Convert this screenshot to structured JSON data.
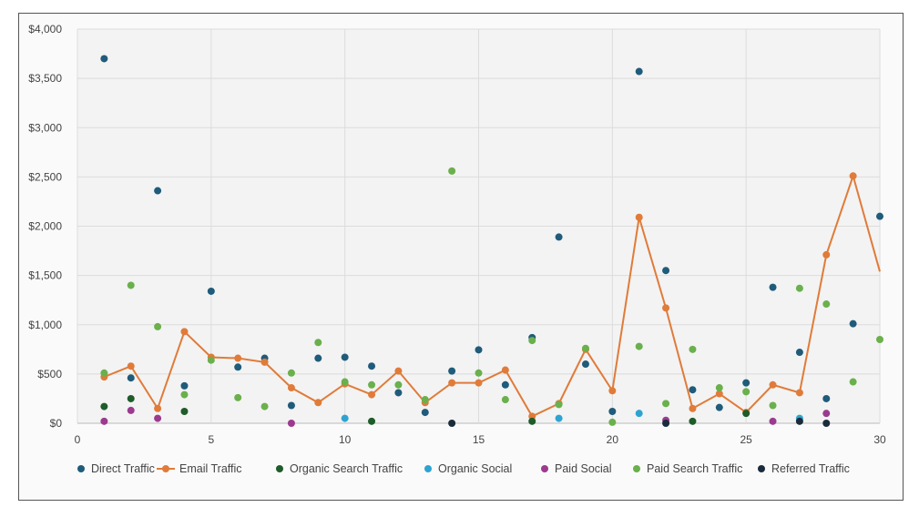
{
  "chart_data": {
    "type": "scatter",
    "title": "",
    "xlabel": "",
    "ylabel": "",
    "xlim": [
      0,
      30
    ],
    "ylim": [
      0,
      4000
    ],
    "x_ticks": [
      "0",
      "5",
      "10",
      "15",
      "20",
      "25",
      "30"
    ],
    "y_ticks": [
      "$0",
      "$500",
      "$1,000",
      "$1,500",
      "$2,000",
      "$2,500",
      "$3,000",
      "$3,500",
      "$4,000"
    ],
    "grid": true,
    "legend_position": "bottom",
    "series": [
      {
        "name": "Direct Traffic",
        "color": "#1f5b7a",
        "style": "markers",
        "x": [
          1,
          2,
          3,
          4,
          5,
          6,
          7,
          8,
          9,
          10,
          11,
          12,
          13,
          14,
          15,
          16,
          17,
          18,
          19,
          20,
          21,
          22,
          23,
          24,
          25,
          26,
          27,
          28,
          29,
          30
        ],
        "y": [
          3700,
          460,
          2360,
          380,
          1340,
          570,
          660,
          180,
          660,
          670,
          580,
          310,
          110,
          530,
          745,
          390,
          870,
          1890,
          600,
          120,
          3570,
          1550,
          340,
          160,
          410,
          1380,
          720,
          250,
          1010,
          2100
        ]
      },
      {
        "name": "Email Traffic",
        "color": "#e07b39",
        "style": "line-markers",
        "x": [
          1,
          2,
          3,
          4,
          5,
          6,
          7,
          8,
          9,
          10,
          11,
          12,
          13,
          14,
          15,
          16,
          17,
          18,
          19,
          20,
          21,
          22,
          23,
          24,
          25,
          26,
          27,
          28,
          29
        ],
        "y": [
          470,
          580,
          150,
          930,
          670,
          660,
          620,
          360,
          210,
          400,
          290,
          530,
          210,
          410,
          410,
          540,
          70,
          200,
          750,
          330,
          2090,
          1170,
          150,
          300,
          110,
          390,
          310,
          1710,
          2510
        ],
        "line_end": [
          30,
          1540
        ]
      },
      {
        "name": "Organic Search Traffic",
        "color": "#1e5c2a",
        "style": "markers",
        "x": [
          1,
          2,
          4,
          11,
          17,
          23,
          25
        ],
        "y": [
          170,
          250,
          120,
          20,
          20,
          20,
          100
        ]
      },
      {
        "name": "Organic Social",
        "color": "#2ea3d1",
        "style": "markers",
        "x": [
          10,
          18,
          21,
          27
        ],
        "y": [
          50,
          50,
          100,
          50
        ]
      },
      {
        "name": "Paid Social",
        "color": "#9c3a8f",
        "style": "markers",
        "x": [
          1,
          2,
          3,
          8,
          22,
          26,
          28
        ],
        "y": [
          20,
          130,
          50,
          0,
          30,
          20,
          100
        ]
      },
      {
        "name": "Paid Search Traffic",
        "color": "#6ab04c",
        "style": "markers",
        "x": [
          1,
          2,
          3,
          4,
          5,
          6,
          7,
          8,
          9,
          10,
          11,
          12,
          13,
          14,
          15,
          16,
          17,
          18,
          19,
          20,
          21,
          22,
          23,
          24,
          25,
          26,
          27,
          28,
          29,
          30
        ],
        "y": [
          510,
          1400,
          980,
          290,
          640,
          260,
          170,
          510,
          820,
          420,
          390,
          390,
          240,
          2560,
          510,
          240,
          840,
          190,
          760,
          10,
          780,
          200,
          750,
          360,
          320,
          180,
          1370,
          1210,
          420,
          850
        ]
      },
      {
        "name": "Referred Traffic",
        "color": "#1a2b3c",
        "style": "markers",
        "x": [
          14,
          22,
          27,
          28
        ],
        "y": [
          0,
          0,
          20,
          0
        ]
      }
    ]
  }
}
